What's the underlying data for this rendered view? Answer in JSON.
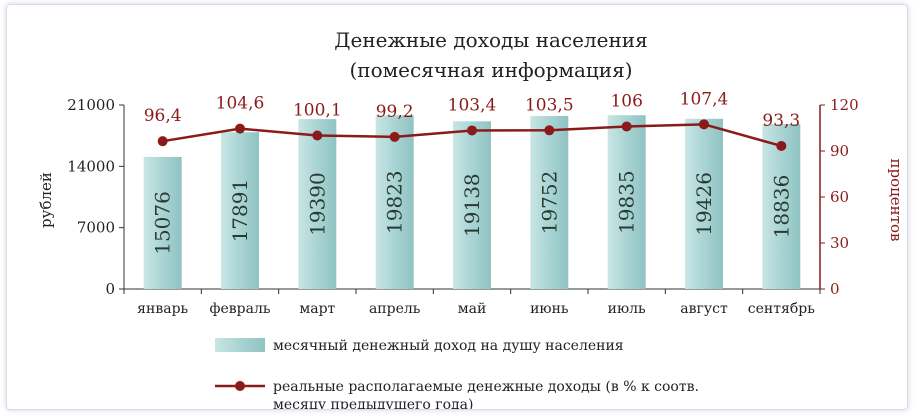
{
  "chart_data": {
    "type": "bar",
    "title": [
      "Денежные доходы населения",
      "(помесячная информация)"
    ],
    "categories": [
      "январь",
      "февраль",
      "март",
      "апрель",
      "май",
      "июнь",
      "июль",
      "август",
      "сентябрь"
    ],
    "series": [
      {
        "name": "месячный денежный доход на душу населения",
        "type": "bar",
        "axis": "left",
        "color": "#a9d4d4",
        "values": [
          15076,
          17891,
          19390,
          19823,
          19138,
          19752,
          19835,
          19426,
          18836
        ]
      },
      {
        "name": "реальные располагаемые денежные доходы (в % к соотв. месяцу предыдущего года)",
        "name_lines": [
          "реальные располагаемые денежные доходы (в % к соотв.",
          "месяцу предыдущего года)"
        ],
        "type": "line",
        "axis": "right",
        "color": "#8b1a1a",
        "values": [
          96.4,
          104.6,
          100.1,
          99.2,
          103.4,
          103.5,
          106,
          107.4,
          93.3
        ],
        "labels": [
          "96,4",
          "104,6",
          "100,1",
          "99,2",
          "103,4",
          "103,5",
          "106",
          "107,4",
          "93,3"
        ]
      }
    ],
    "ylabel": "рублей",
    "ylabel_right": "процентов",
    "ylim": [
      0,
      21000
    ],
    "yticks": [
      0,
      7000,
      14000,
      21000
    ],
    "ylim_right": [
      0,
      120
    ],
    "yticks_right": [
      0,
      30,
      60,
      90,
      120
    ],
    "legend_position": "bottom",
    "grid": false
  }
}
